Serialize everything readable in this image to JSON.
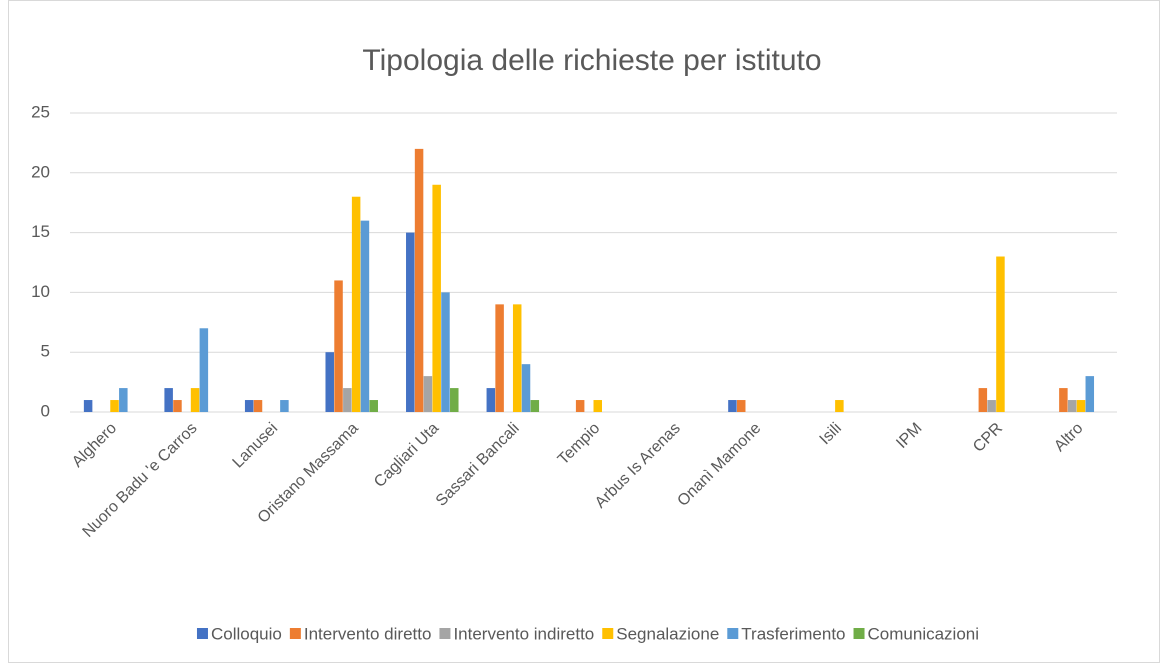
{
  "chart_data": {
    "type": "bar",
    "title": "Tipologia delle richieste per istituto",
    "categories": [
      "Alghero",
      "Nuoro Badu 'e Carros",
      "Lanusei",
      "Oristano Massama",
      "Cagliari Uta",
      "Sassari Bancali",
      "Tempio",
      "Arbus Is Arenas",
      "Onanì Mamone",
      "Isili",
      "IPM",
      "CPR",
      "Altro"
    ],
    "series": [
      {
        "name": "Colloquio",
        "color": "#4472c4",
        "values": [
          1,
          2,
          1,
          5,
          15,
          2,
          0,
          0,
          1,
          0,
          0,
          0,
          0
        ]
      },
      {
        "name": "Intervento diretto",
        "color": "#ed7d31",
        "values": [
          0,
          1,
          1,
          11,
          22,
          9,
          1,
          0,
          1,
          0,
          0,
          2,
          2
        ]
      },
      {
        "name": "Intervento indiretto",
        "color": "#a5a5a5",
        "values": [
          0,
          0,
          0,
          2,
          3,
          0,
          0,
          0,
          0,
          0,
          0,
          1,
          1
        ]
      },
      {
        "name": "Segnalazione",
        "color": "#ffc000",
        "values": [
          1,
          2,
          0,
          18,
          19,
          9,
          1,
          0,
          0,
          1,
          0,
          13,
          1
        ]
      },
      {
        "name": "Trasferimento",
        "color": "#5b9bd5",
        "values": [
          2,
          7,
          1,
          16,
          10,
          4,
          0,
          0,
          0,
          0,
          0,
          0,
          3
        ]
      },
      {
        "name": "Comunicazioni",
        "color": "#70ad47",
        "values": [
          0,
          0,
          0,
          1,
          2,
          1,
          0,
          0,
          0,
          0,
          0,
          0,
          0
        ]
      }
    ],
    "ylim": [
      0,
      25
    ],
    "yticks": [
      0,
      5,
      10,
      15,
      20,
      25
    ],
    "grid": true,
    "legend": "bottom"
  }
}
